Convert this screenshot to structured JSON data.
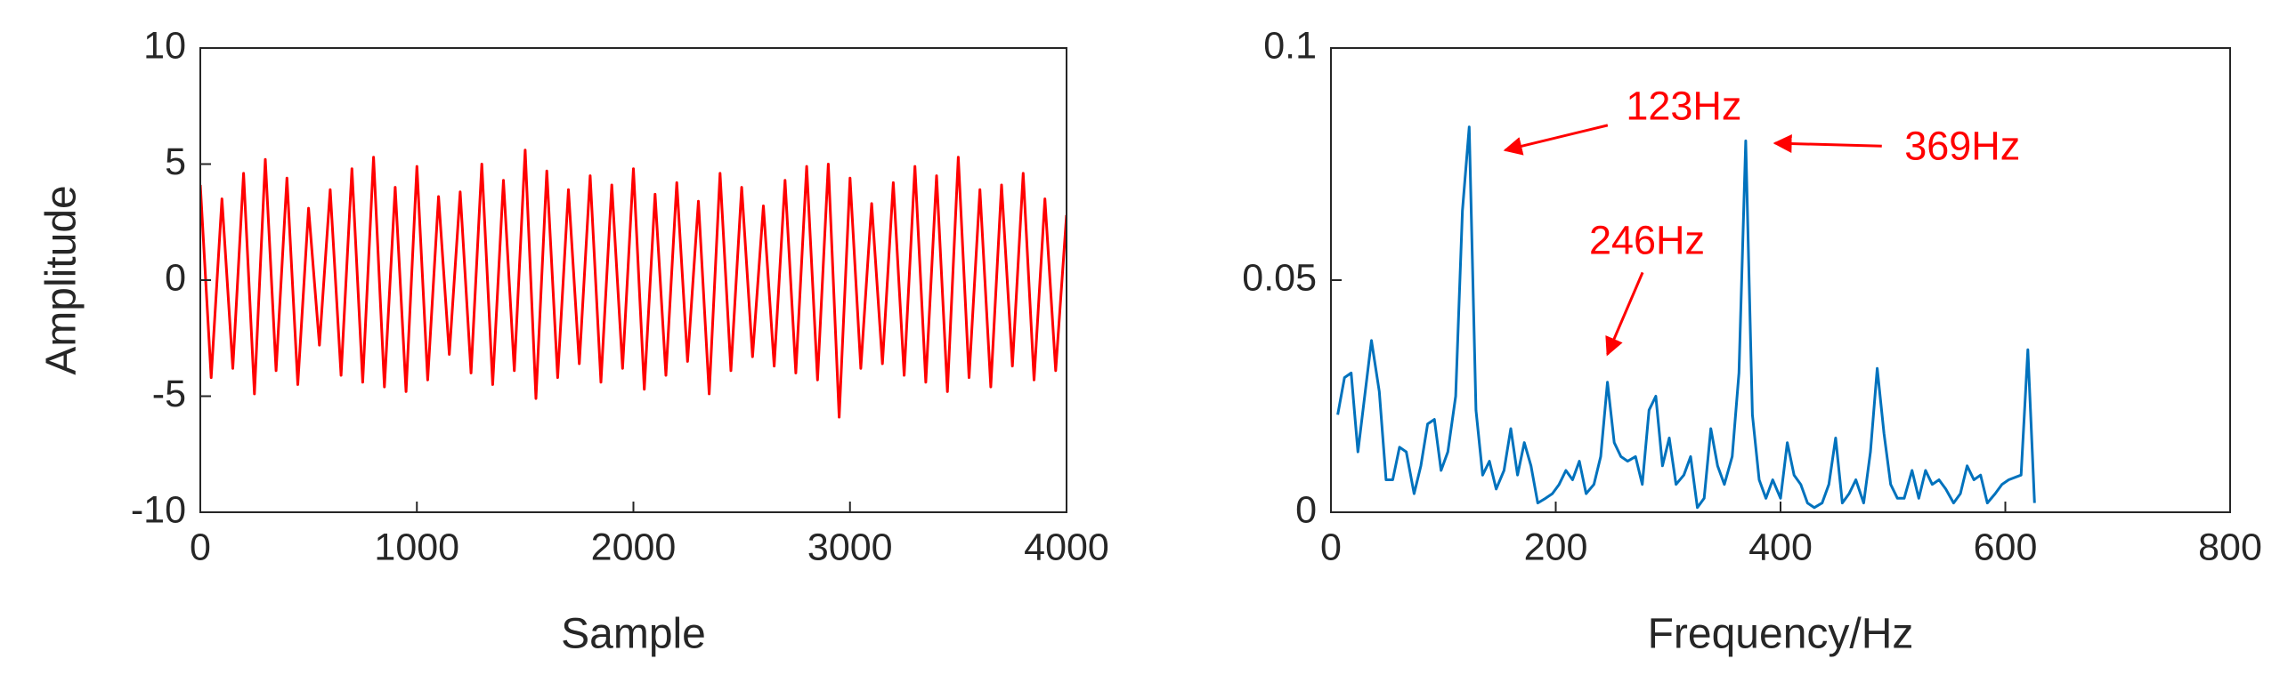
{
  "chart_data": [
    {
      "type": "line",
      "xlabel": "Sample",
      "ylabel": "Amplitude",
      "xlim": [
        0,
        4000
      ],
      "xticks": [
        0,
        1000,
        2000,
        3000,
        4000
      ],
      "ylim": [
        -10,
        10
      ],
      "yticks": [
        -10,
        -5,
        0,
        5,
        10
      ],
      "series": [
        {
          "color": "#ff0000",
          "x": [
            0,
            50,
            100,
            150,
            200,
            250,
            300,
            350,
            400,
            450,
            500,
            550,
            600,
            650,
            700,
            750,
            800,
            850,
            900,
            950,
            1000,
            1050,
            1100,
            1150,
            1200,
            1250,
            1300,
            1350,
            1400,
            1450,
            1500,
            1550,
            1600,
            1650,
            1700,
            1750,
            1800,
            1850,
            1900,
            1950,
            2000,
            2050,
            2100,
            2150,
            2200,
            2250,
            2300,
            2350,
            2400,
            2450,
            2500,
            2550,
            2600,
            2650,
            2700,
            2750,
            2800,
            2850,
            2900,
            2950,
            3000,
            3050,
            3100,
            3150,
            3200,
            3250,
            3300,
            3350,
            3400,
            3450,
            3500,
            3550,
            3600,
            3650,
            3700,
            3750,
            3800,
            3850,
            3900,
            3950,
            4000
          ],
          "values": [
            4.1,
            -4.2,
            3.5,
            -3.8,
            4.6,
            -4.9,
            5.2,
            -3.9,
            4.4,
            -4.5,
            3.1,
            -2.8,
            3.9,
            -4.1,
            4.8,
            -4.4,
            5.3,
            -4.6,
            4.0,
            -4.8,
            4.9,
            -4.3,
            3.6,
            -3.2,
            3.8,
            -4.0,
            5.0,
            -4.5,
            4.3,
            -3.9,
            5.6,
            -5.1,
            4.7,
            -4.2,
            3.9,
            -3.6,
            4.5,
            -4.4,
            4.1,
            -3.8,
            4.8,
            -4.7,
            3.7,
            -4.1,
            4.2,
            -3.5,
            3.4,
            -4.9,
            4.6,
            -3.9,
            4.0,
            -3.3,
            3.2,
            -3.7,
            4.3,
            -4.0,
            4.9,
            -4.3,
            5.0,
            -5.9,
            4.4,
            -3.8,
            3.3,
            -3.6,
            4.2,
            -4.1,
            4.9,
            -4.4,
            4.5,
            -4.8,
            5.3,
            -4.2,
            3.9,
            -4.6,
            4.1,
            -3.7,
            4.6,
            -4.3,
            3.5,
            -3.9,
            2.8
          ]
        }
      ]
    },
    {
      "type": "line",
      "xlabel": "Frequency/Hz",
      "xlim": [
        0,
        800
      ],
      "xticks": [
        0,
        200,
        400,
        600,
        800
      ],
      "ylim": [
        0,
        0.1
      ],
      "yticks": [
        0,
        0.05,
        0.1
      ],
      "series": [
        {
          "color": "#0072bd",
          "x": [
            6,
            12,
            18,
            24,
            36,
            43,
            49,
            55,
            61,
            67,
            74,
            80,
            86,
            92,
            98,
            104,
            111,
            117,
            123,
            129,
            135,
            141,
            147,
            154,
            160,
            166,
            172,
            178,
            184,
            191,
            197,
            203,
            209,
            215,
            221,
            227,
            234,
            240,
            246,
            252,
            258,
            264,
            271,
            277,
            283,
            289,
            295,
            301,
            307,
            314,
            320,
            326,
            332,
            338,
            344,
            350,
            357,
            363,
            369,
            375,
            381,
            387,
            393,
            400,
            406,
            412,
            418,
            424,
            430,
            437,
            443,
            449,
            455,
            461,
            467,
            474,
            480,
            486,
            492,
            498,
            504,
            510,
            517,
            523,
            529,
            535,
            541,
            547,
            554,
            560,
            566,
            572,
            578,
            584,
            591,
            597,
            603,
            614,
            620,
            626
          ],
          "values": [
            0.021,
            0.029,
            0.03,
            0.013,
            0.037,
            0.026,
            0.007,
            0.007,
            0.014,
            0.013,
            0.004,
            0.01,
            0.019,
            0.02,
            0.009,
            0.013,
            0.025,
            0.065,
            0.083,
            0.022,
            0.008,
            0.011,
            0.005,
            0.009,
            0.018,
            0.008,
            0.015,
            0.01,
            0.002,
            0.003,
            0.004,
            0.006,
            0.009,
            0.007,
            0.011,
            0.004,
            0.006,
            0.012,
            0.028,
            0.015,
            0.012,
            0.011,
            0.012,
            0.006,
            0.022,
            0.025,
            0.01,
            0.016,
            0.006,
            0.008,
            0.012,
            0.001,
            0.003,
            0.018,
            0.01,
            0.006,
            0.012,
            0.03,
            0.08,
            0.021,
            0.007,
            0.003,
            0.007,
            0.003,
            0.015,
            0.008,
            0.006,
            0.002,
            0.001,
            0.002,
            0.006,
            0.016,
            0.002,
            0.004,
            0.007,
            0.002,
            0.013,
            0.031,
            0.017,
            0.006,
            0.003,
            0.003,
            0.009,
            0.003,
            0.009,
            0.006,
            0.007,
            0.005,
            0.002,
            0.004,
            0.01,
            0.007,
            0.008,
            0.002,
            0.004,
            0.006,
            0.007,
            0.008,
            0.035,
            0.002
          ]
        }
      ],
      "annotations": [
        {
          "text": "123Hz",
          "x": 155,
          "y": 0.078,
          "color": "#ff0000"
        },
        {
          "text": "246Hz",
          "x": 246,
          "y": 0.034,
          "color": "#ff0000"
        },
        {
          "text": "369Hz",
          "x": 395,
          "y": 0.0795,
          "color": "#ff0000"
        }
      ]
    }
  ]
}
